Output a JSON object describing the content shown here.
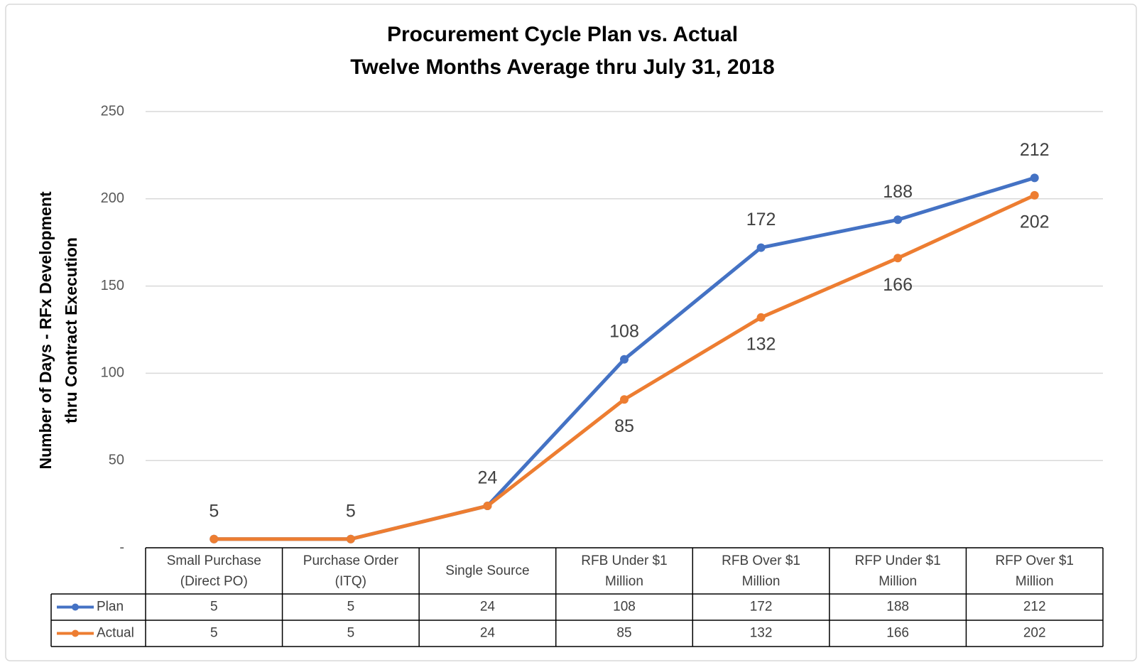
{
  "chart_data": {
    "type": "line",
    "title": [
      "Procurement Cycle Plan vs. Actual",
      "Twelve Months Average thru July 31, 2018"
    ],
    "ylabel": [
      "Number of Days - RFx Development",
      "thru Contract Execution"
    ],
    "categories": [
      "Small Purchase (Direct PO)",
      "Purchase Order (ITQ)",
      "Single Source",
      "RFB Under $1 Million",
      "RFB Over $1 Million",
      "RFP Under $1 Million",
      "RFP Over $1 Million"
    ],
    "series": [
      {
        "name": "Plan",
        "color": "#4472c4",
        "values": [
          5,
          5,
          24,
          108,
          172,
          188,
          212
        ]
      },
      {
        "name": "Actual",
        "color": "#ed7d31",
        "values": [
          5,
          5,
          24,
          85,
          132,
          166,
          202
        ]
      }
    ],
    "ylim": [
      0,
      250
    ],
    "yticks": [
      {
        "value": 0,
        "label": "-"
      },
      50,
      100,
      150,
      200,
      250
    ],
    "grid": true,
    "data_table": true
  }
}
